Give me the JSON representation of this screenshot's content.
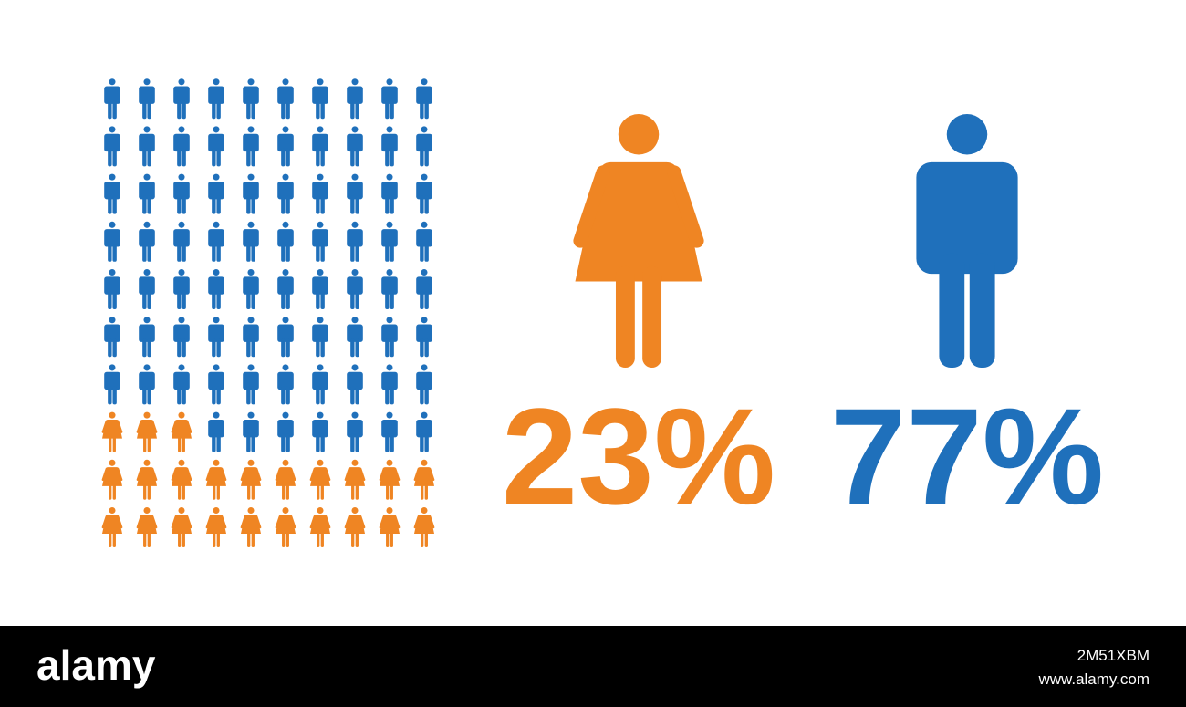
{
  "chart_data": {
    "type": "pictogram",
    "series": [
      {
        "icon": "female",
        "color": "#ef8523",
        "values": [
          23
        ],
        "value_labels": [
          "23%"
        ]
      },
      {
        "icon": "male",
        "color": "#1f70bb",
        "values": [
          77
        ],
        "value_labels": [
          "77%"
        ]
      }
    ]
  },
  "footer": {
    "logo": "alamy",
    "image_id": "2M51XBM",
    "url": "www.alamy.com"
  }
}
